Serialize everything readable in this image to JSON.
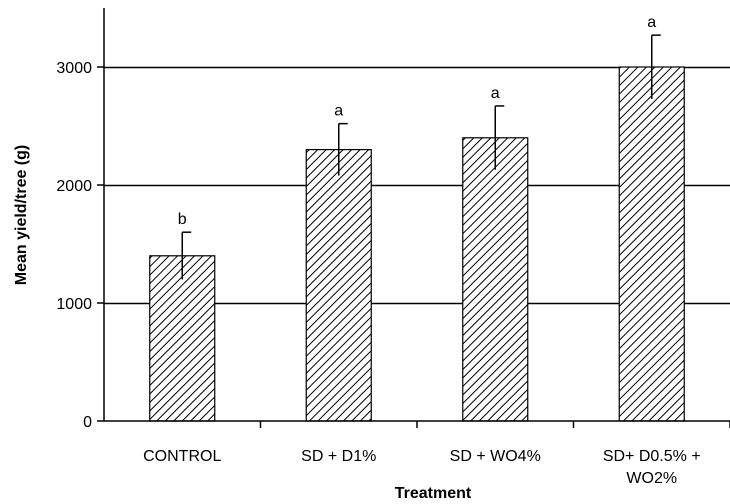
{
  "chart_data": {
    "type": "bar",
    "categories": [
      "CONTROL",
      "SD + D1%",
      "SD + WO4%",
      "SD+ D0.5% +\nWO2%"
    ],
    "values": [
      1400,
      2300,
      2400,
      3000
    ],
    "error": [
      200,
      220,
      270,
      270
    ],
    "significance": [
      "b",
      "a",
      "a",
      "a"
    ],
    "xlabel": "Treatment",
    "ylabel": "Mean yield/tree (g)",
    "ylim": [
      0,
      3500
    ],
    "yticks": [
      0,
      1000,
      2000,
      3000
    ],
    "grid": true,
    "bar_fill": "diagonal-hatch",
    "bar_color": "#000000"
  }
}
